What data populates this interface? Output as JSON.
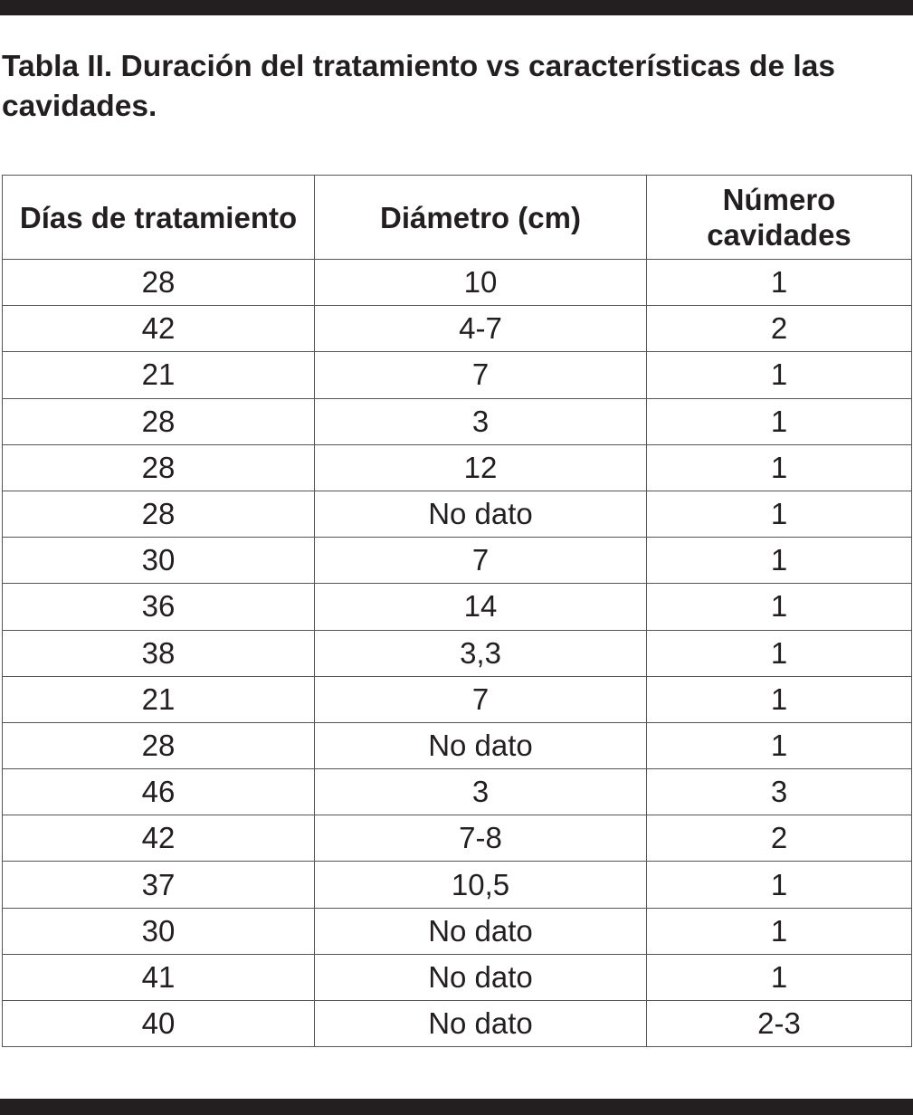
{
  "title": "Tabla II. Duración del tratamiento vs características de las cavidades.",
  "table": {
    "headers": [
      "Días de tratamiento",
      "Diámetro (cm)",
      "Número cavidades"
    ],
    "rows": [
      [
        "28",
        "10",
        "1"
      ],
      [
        "42",
        "4-7",
        "2"
      ],
      [
        "21",
        "7",
        "1"
      ],
      [
        "28",
        "3",
        "1"
      ],
      [
        "28",
        "12",
        "1"
      ],
      [
        "28",
        "No dato",
        "1"
      ],
      [
        "30",
        "7",
        "1"
      ],
      [
        "36",
        "14",
        "1"
      ],
      [
        "38",
        "3,3",
        "1"
      ],
      [
        "21",
        "7",
        "1"
      ],
      [
        "28",
        "No dato",
        "1"
      ],
      [
        "46",
        "3",
        "3"
      ],
      [
        "42",
        "7-8",
        "2"
      ],
      [
        "37",
        "10,5",
        "1"
      ],
      [
        "30",
        "No dato",
        "1"
      ],
      [
        "41",
        "No dato",
        "1"
      ],
      [
        "40",
        "No dato",
        "2-3"
      ]
    ]
  },
  "colors": {
    "ink": "#231f20",
    "border": "#555555"
  }
}
